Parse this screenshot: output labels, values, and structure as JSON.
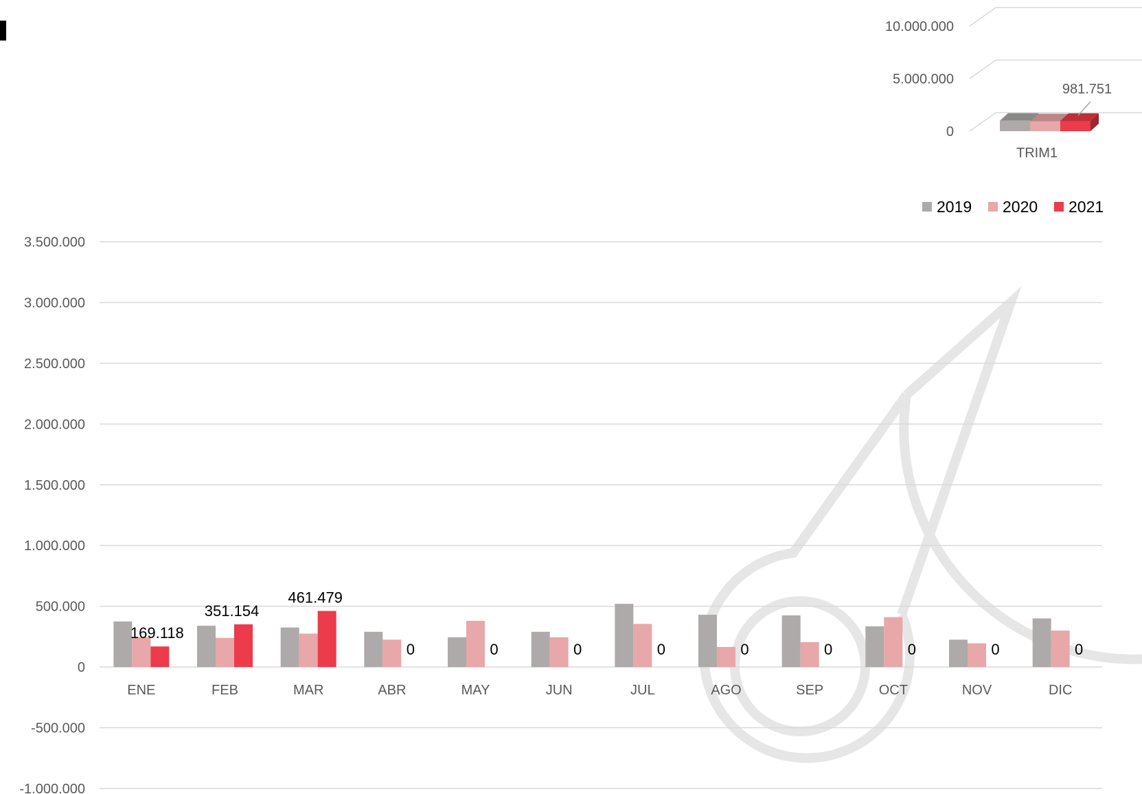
{
  "colors": {
    "2019": "#aeaaaa",
    "2020": "#e8a7a8",
    "2021": "#ec3b4a",
    "grid": "#d9d9d9",
    "watermark": "#e6e6e6"
  },
  "legend": [
    "2019",
    "2020",
    "2021"
  ],
  "chart_data": [
    {
      "type": "bar",
      "title": "",
      "categories": [
        "TRIM1"
      ],
      "series": [
        {
          "name": "2019",
          "values": [
            1000000
          ]
        },
        {
          "name": "2020",
          "values": [
            950000
          ]
        },
        {
          "name": "2021",
          "values": [
            981751
          ]
        }
      ],
      "data_labels": {
        "2021": [
          "981.751"
        ]
      },
      "yticks": [
        "0",
        "5.000.000",
        "10.000.000"
      ],
      "ylim": [
        0,
        10000000
      ],
      "style": "3d"
    },
    {
      "type": "bar",
      "title": "",
      "categories": [
        "ENE",
        "FEB",
        "MAR",
        "ABR",
        "MAY",
        "JUN",
        "JUL",
        "AGO",
        "SEP",
        "OCT",
        "NOV",
        "DIC"
      ],
      "series": [
        {
          "name": "2019",
          "values": [
            375000,
            340000,
            325000,
            290000,
            245000,
            290000,
            520000,
            430000,
            425000,
            335000,
            225000,
            400000
          ]
        },
        {
          "name": "2020",
          "values": [
            245000,
            240000,
            275000,
            225000,
            380000,
            245000,
            355000,
            165000,
            205000,
            410000,
            195000,
            300000
          ]
        },
        {
          "name": "2021",
          "values": [
            169118,
            351154,
            461479,
            0,
            0,
            0,
            0,
            0,
            0,
            0,
            0,
            0
          ]
        }
      ],
      "data_labels": {
        "2021": [
          "169.118",
          "351.154",
          "461.479",
          "0",
          "0",
          "0",
          "0",
          "0",
          "0",
          "0",
          "0",
          "0"
        ]
      },
      "yticks": [
        "-1.000.000",
        "-500.000",
        "0",
        "500.000",
        "1.000.000",
        "1.500.000",
        "2.000.000",
        "2.500.000",
        "3.000.000",
        "3.500.000"
      ],
      "ylim": [
        -1000000,
        3500000
      ],
      "grid": true,
      "legend_position": "top-right"
    }
  ]
}
